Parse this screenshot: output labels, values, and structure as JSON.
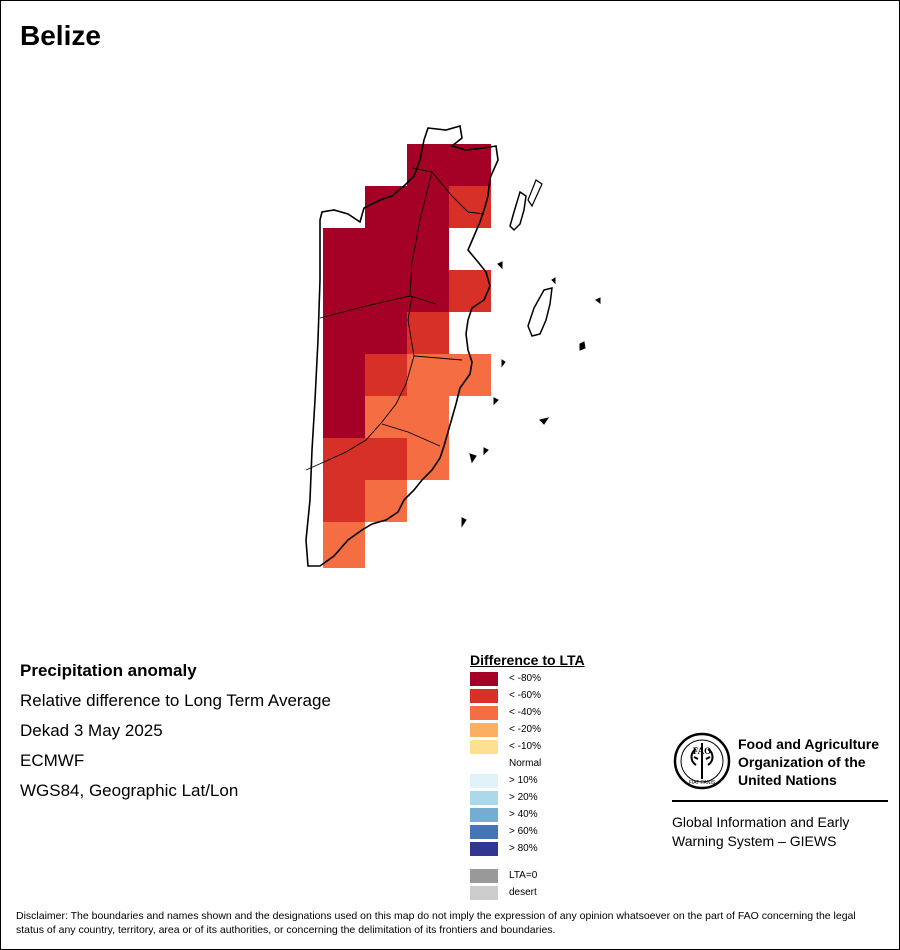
{
  "map": {
    "country": "Belize",
    "colors": {
      "lt80": "#a50026",
      "lt60": "#d73027",
      "lt40": "#f46d43",
      "lt20": "#fdae61",
      "lt10": "#fee090",
      "normal": "#ffffff",
      "gt10": "#e0f3f8",
      "gt20": "#abd9e9",
      "gt40": "#74add1",
      "gt60": "#4575b4",
      "gt80": "#313695",
      "lta0": "#999999",
      "desert": "#cccccc"
    }
  },
  "info": {
    "heading": "Precipitation anomaly",
    "line1": "Relative difference to Long Term Average",
    "line2": "Dekad 3 May 2025",
    "line3": "ECMWF",
    "line4": "WGS84, Geographic Lat/Lon"
  },
  "legend": {
    "title": "Difference to LTA",
    "items": [
      {
        "label": "< -80%",
        "color": "#a50026"
      },
      {
        "label": "< -60%",
        "color": "#d73027"
      },
      {
        "label": "< -40%",
        "color": "#f46d43"
      },
      {
        "label": "< -20%",
        "color": "#fdae61"
      },
      {
        "label": "< -10%",
        "color": "#fee090"
      },
      {
        "label": "Normal",
        "color": "#ffffff"
      },
      {
        "label": "> 10%",
        "color": "#e0f3f8"
      },
      {
        "label": "> 20%",
        "color": "#abd9e9"
      },
      {
        "label": "> 40%",
        "color": "#74add1"
      },
      {
        "label": "> 60%",
        "color": "#4575b4"
      },
      {
        "label": "> 80%",
        "color": "#313695"
      },
      {
        "label": "LTA=0",
        "color": "#999999"
      },
      {
        "label": "desert",
        "color": "#cccccc"
      }
    ]
  },
  "fao": {
    "logo_text": "FAO",
    "motto": "FIAT PANIS",
    "name_line1": "Food and Agriculture",
    "name_line2": "Organization of the",
    "name_line3": "United Nations",
    "giews_line1": "Global Information and Early",
    "giews_line2": "Warning System – GIEWS"
  },
  "disclaimer": "Disclaimer: The boundaries and names shown and the designations used on this map do not imply the expression of any opinion whatsoever on the part of FAO concerning the legal status of any country, territory, area or of its authorities, or concerning the delimitation of its frontiers and boundaries."
}
